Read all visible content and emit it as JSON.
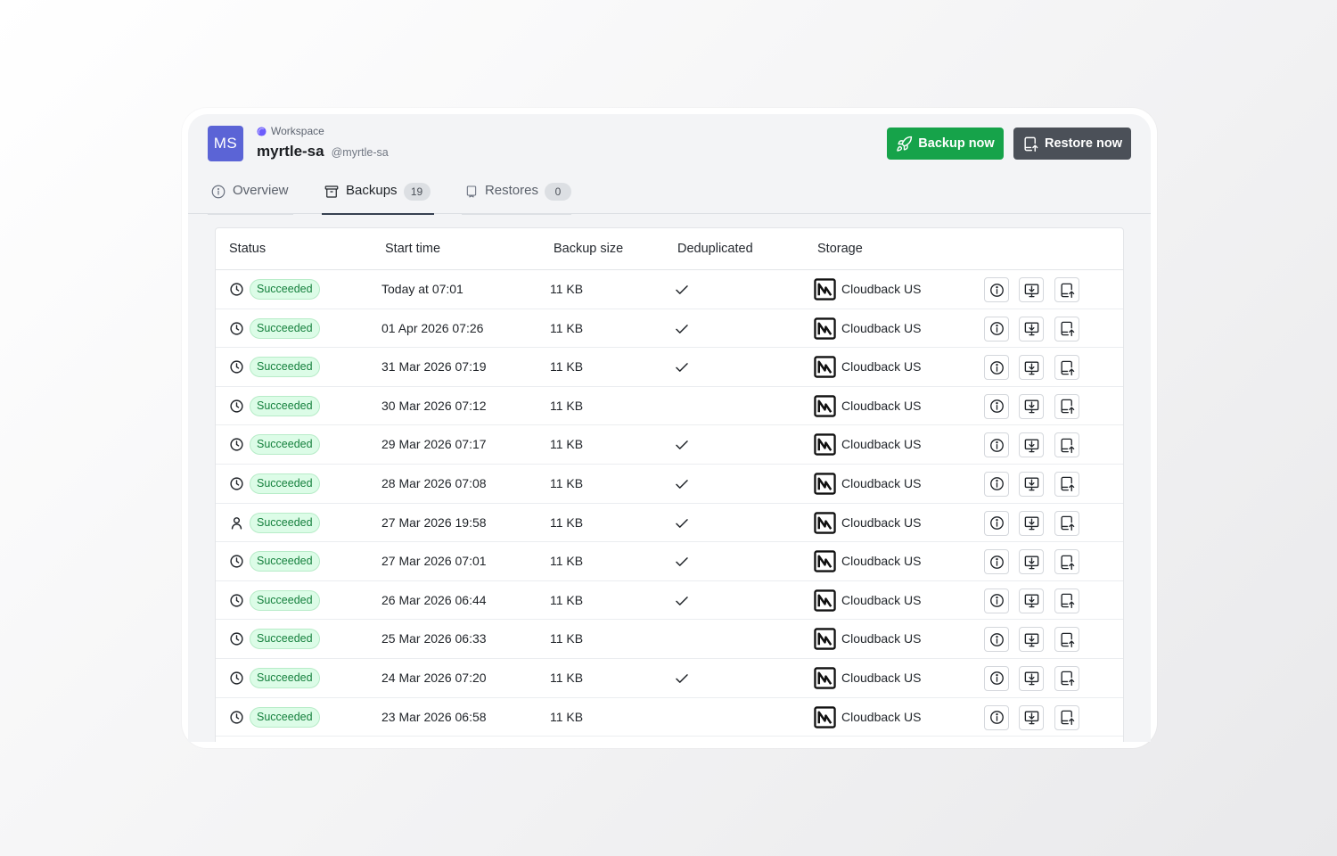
{
  "workspace": {
    "avatar_initials": "MS",
    "label": "Workspace",
    "name": "myrtle-sa",
    "handle": "@myrtle-sa"
  },
  "actions": {
    "backup_label": "Backup now",
    "restore_label": "Restore now"
  },
  "tabs": [
    {
      "label": "Overview",
      "icon": "info-circle-icon"
    },
    {
      "label": "Backups",
      "count": "19",
      "icon": "archive-box-icon"
    },
    {
      "label": "Restores",
      "count": "0",
      "icon": "restore-device-icon"
    }
  ],
  "active_tab": "Backups",
  "table": {
    "columns": [
      "Status",
      "Start time",
      "Backup size",
      "Deduplicated",
      "Storage"
    ],
    "rows": [
      {
        "trigger": "clock-icon",
        "status": "Succeeded",
        "start_time": "Today at 07:01",
        "size": "11 KB",
        "deduplicated": true,
        "storage": "Cloudback US"
      },
      {
        "trigger": "clock-icon",
        "status": "Succeeded",
        "start_time": "01 Apr 2026 07:26",
        "size": "11 KB",
        "deduplicated": true,
        "storage": "Cloudback US"
      },
      {
        "trigger": "clock-icon",
        "status": "Succeeded",
        "start_time": "31 Mar 2026 07:19",
        "size": "11 KB",
        "deduplicated": true,
        "storage": "Cloudback US"
      },
      {
        "trigger": "clock-icon",
        "status": "Succeeded",
        "start_time": "30 Mar 2026 07:12",
        "size": "11 KB",
        "deduplicated": false,
        "storage": "Cloudback US"
      },
      {
        "trigger": "clock-icon",
        "status": "Succeeded",
        "start_time": "29 Mar 2026 07:17",
        "size": "11 KB",
        "deduplicated": true,
        "storage": "Cloudback US"
      },
      {
        "trigger": "clock-icon",
        "status": "Succeeded",
        "start_time": "28 Mar 2026 07:08",
        "size": "11 KB",
        "deduplicated": true,
        "storage": "Cloudback US"
      },
      {
        "trigger": "user-icon",
        "status": "Succeeded",
        "start_time": "27 Mar 2026 19:58",
        "size": "11 KB",
        "deduplicated": true,
        "storage": "Cloudback US"
      },
      {
        "trigger": "clock-icon",
        "status": "Succeeded",
        "start_time": "27 Mar 2026 07:01",
        "size": "11 KB",
        "deduplicated": true,
        "storage": "Cloudback US"
      },
      {
        "trigger": "clock-icon",
        "status": "Succeeded",
        "start_time": "26 Mar 2026 06:44",
        "size": "11 KB",
        "deduplicated": true,
        "storage": "Cloudback US"
      },
      {
        "trigger": "clock-icon",
        "status": "Succeeded",
        "start_time": "25 Mar 2026 06:33",
        "size": "11 KB",
        "deduplicated": false,
        "storage": "Cloudback US"
      },
      {
        "trigger": "clock-icon",
        "status": "Succeeded",
        "start_time": "24 Mar 2026 07:20",
        "size": "11 KB",
        "deduplicated": true,
        "storage": "Cloudback US"
      },
      {
        "trigger": "clock-icon",
        "status": "Succeeded",
        "start_time": "23 Mar 2026 06:58",
        "size": "11 KB",
        "deduplicated": false,
        "storage": "Cloudback US"
      }
    ]
  },
  "colors": {
    "avatar": "#5b64d6",
    "backup_button": "#16a34a",
    "restore_button": "#4b5058",
    "status_success": "#15803d"
  }
}
